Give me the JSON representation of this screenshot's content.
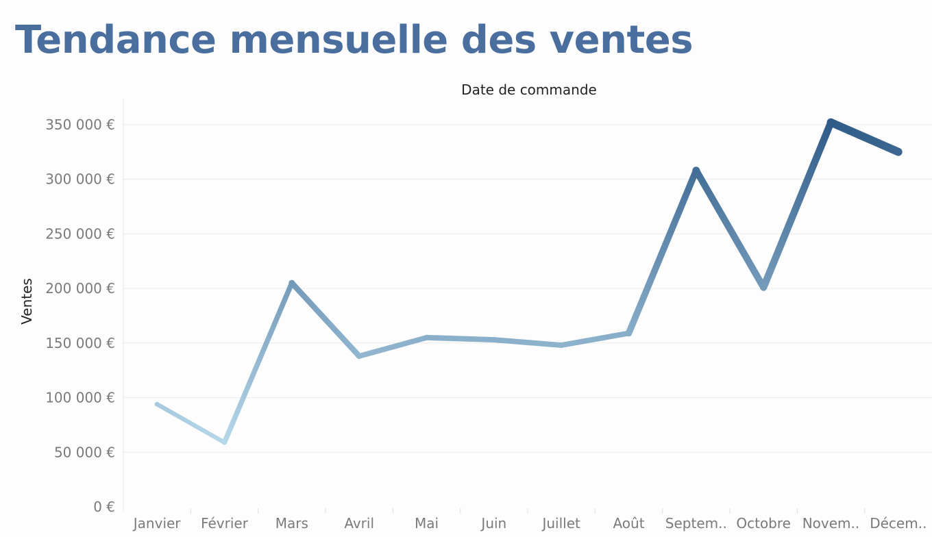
{
  "title": "Tendance mensuelle des ventes",
  "chart_data": {
    "type": "line",
    "title": "Tendance mensuelle des ventes",
    "xlabel": "Date de commande",
    "ylabel": "Ventes",
    "categories": [
      "Janvier",
      "Février",
      "Mars",
      "Avril",
      "Mai",
      "Juin",
      "Juillet",
      "Août",
      "Septem..",
      "Octobre",
      "Novem..",
      "Décem.."
    ],
    "series": [
      {
        "values": [
          94000,
          59000,
          205000,
          138000,
          155000,
          153000,
          148000,
          159000,
          308000,
          201000,
          352000,
          325000
        ]
      }
    ],
    "ylim": [
      0,
      370000
    ],
    "yticks": [
      0,
      50000,
      100000,
      150000,
      200000,
      250000,
      300000,
      350000
    ],
    "ytick_labels": [
      "0 €",
      "50 000 €",
      "100 000 €",
      "150 000 €",
      "200 000 €",
      "250 000 €",
      "300 000 €",
      "350 000 €"
    ],
    "grid": true,
    "color_start": "#b7d8ea",
    "color_end": "#2e5b88",
    "gridline_color": "#ececec",
    "text_color": "#7a7a7a",
    "title_color": "#4a6f9e"
  }
}
